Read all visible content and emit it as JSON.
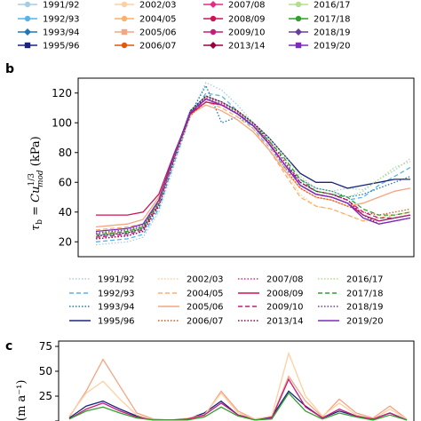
{
  "figure": {
    "panel_b_letter": "b",
    "panel_c_letter": "c",
    "panel_b_ylabel": "τb = Cu1/3mod (kPa)",
    "panel_c_ylabel": "(m a⁻¹)"
  },
  "chart_data": [
    {
      "type": "line",
      "panel": "b",
      "ylabel": "τb = Cu_mod^(1/3) (kPa)",
      "xlabel": "",
      "ylim": [
        10,
        130
      ],
      "yticks": [
        20,
        40,
        60,
        80,
        100,
        120
      ],
      "xlim": [
        0,
        100
      ],
      "grid": false,
      "legend_position": "top",
      "x": [
        0,
        5,
        10,
        15,
        20,
        25,
        30,
        35,
        40,
        45,
        50,
        55,
        60,
        65,
        70,
        75,
        80,
        85,
        90,
        95,
        100
      ],
      "series": [
        {
          "name": "1991/92",
          "color": "#a6cee3",
          "style": "dotted",
          "values": [
            18,
            19,
            20,
            23,
            40,
            72,
            105,
            127,
            122,
            112,
            100,
            88,
            75,
            62,
            56,
            54,
            56,
            55,
            62,
            68,
            76
          ]
        },
        {
          "name": "1992/93",
          "color": "#56b4e9",
          "style": "dashed",
          "values": [
            20,
            21,
            22,
            25,
            42,
            74,
            104,
            120,
            118,
            108,
            96,
            84,
            70,
            60,
            54,
            52,
            48,
            50,
            58,
            64,
            70
          ]
        },
        {
          "name": "1993/94",
          "color": "#1f78b4",
          "style": "dotted",
          "values": [
            22,
            23,
            24,
            27,
            44,
            76,
            106,
            125,
            100,
            104,
            98,
            86,
            72,
            62,
            56,
            54,
            50,
            52,
            56,
            60,
            64
          ]
        },
        {
          "name": "1995/96",
          "color": "#1a237e",
          "style": "solid",
          "values": [
            24,
            25,
            26,
            29,
            46,
            78,
            108,
            118,
            114,
            108,
            100,
            90,
            78,
            66,
            60,
            60,
            56,
            58,
            60,
            62,
            62
          ]
        },
        {
          "name": "2002/03",
          "color": "#fdd0a2",
          "style": "dotted",
          "values": [
            26,
            27,
            28,
            31,
            46,
            76,
            104,
            116,
            112,
            106,
            98,
            84,
            68,
            52,
            44,
            42,
            38,
            34,
            34,
            36,
            38
          ]
        },
        {
          "name": "2004/05",
          "color": "#fdae6b",
          "style": "dashed",
          "values": [
            28,
            29,
            30,
            32,
            48,
            78,
            106,
            114,
            110,
            104,
            96,
            82,
            66,
            50,
            44,
            42,
            38,
            34,
            36,
            38,
            40
          ]
        },
        {
          "name": "2005/06",
          "color": "#f4a582",
          "style": "solid",
          "values": [
            30,
            31,
            32,
            35,
            50,
            80,
            106,
            112,
            108,
            102,
            94,
            82,
            68,
            56,
            50,
            48,
            44,
            46,
            50,
            54,
            56
          ]
        },
        {
          "name": "2006/07",
          "color": "#e6550d",
          "style": "dotted",
          "values": [
            25,
            26,
            27,
            30,
            47,
            78,
            105,
            114,
            112,
            106,
            98,
            86,
            70,
            56,
            50,
            48,
            44,
            40,
            38,
            40,
            42
          ]
        },
        {
          "name": "2007/08",
          "color": "#e7298a",
          "style": "dotted",
          "values": [
            24,
            25,
            26,
            29,
            46,
            77,
            107,
            117,
            113,
            107,
            99,
            87,
            72,
            58,
            52,
            50,
            46,
            38,
            34,
            36,
            38
          ]
        },
        {
          "name": "2008/09",
          "color": "#ce1256",
          "style": "solid",
          "values": [
            38,
            38,
            38,
            40,
            52,
            80,
            106,
            114,
            112,
            106,
            98,
            86,
            72,
            58,
            52,
            50,
            46,
            38,
            34,
            36,
            38
          ]
        },
        {
          "name": "2009/10",
          "color": "#c51b7d",
          "style": "dashed",
          "values": [
            23,
            24,
            25,
            28,
            45,
            77,
            106,
            116,
            112,
            106,
            98,
            86,
            72,
            60,
            54,
            52,
            48,
            40,
            36,
            36,
            38
          ]
        },
        {
          "name": "2013/14",
          "color": "#980043",
          "style": "dotted",
          "values": [
            22,
            23,
            24,
            27,
            44,
            76,
            106,
            118,
            114,
            108,
            100,
            88,
            74,
            60,
            54,
            52,
            48,
            38,
            32,
            34,
            36
          ]
        },
        {
          "name": "2016/17",
          "color": "#b2df8a",
          "style": "dotted",
          "values": [
            24,
            25,
            26,
            29,
            46,
            78,
            108,
            118,
            114,
            108,
            100,
            90,
            78,
            64,
            56,
            54,
            50,
            54,
            62,
            70,
            74
          ]
        },
        {
          "name": "2017/18",
          "color": "#33a02c",
          "style": "dashed",
          "values": [
            25,
            26,
            27,
            30,
            47,
            78,
            107,
            116,
            112,
            106,
            98,
            88,
            76,
            62,
            54,
            52,
            50,
            42,
            38,
            38,
            40
          ]
        },
        {
          "name": "2018/19",
          "color": "#6a3d9a",
          "style": "dotted",
          "values": [
            26,
            27,
            28,
            31,
            48,
            79,
            107,
            116,
            112,
            106,
            98,
            86,
            72,
            58,
            52,
            50,
            46,
            38,
            34,
            36,
            38
          ]
        },
        {
          "name": "2019/20",
          "color": "#7b2cbf",
          "style": "solid",
          "values": [
            27,
            28,
            29,
            32,
            48,
            79,
            107,
            116,
            112,
            106,
            98,
            86,
            72,
            58,
            52,
            50,
            46,
            36,
            32,
            34,
            36
          ]
        }
      ]
    },
    {
      "type": "line",
      "panel": "c",
      "ylabel": "(m a⁻¹)",
      "xlabel": "",
      "ylim": [
        0,
        75
      ],
      "yticks": [
        0,
        25,
        50,
        75
      ],
      "ytick_labels": [
        "",
        "25",
        "50",
        "75"
      ],
      "xlim": [
        0,
        100
      ],
      "grid": false,
      "x": [
        0,
        5,
        10,
        15,
        20,
        25,
        30,
        35,
        40,
        45,
        50,
        55,
        60,
        65,
        70,
        75,
        80,
        85,
        90,
        95,
        100
      ],
      "series": [
        {
          "name": "2005/06",
          "color": "#f4a582",
          "values": [
            4,
            30,
            62,
            35,
            8,
            2,
            1,
            2,
            5,
            30,
            10,
            2,
            3,
            45,
            20,
            4,
            22,
            8,
            3,
            15,
            2
          ]
        },
        {
          "name": "1995/96",
          "color": "#1a237e",
          "values": [
            3,
            15,
            20,
            12,
            5,
            1,
            1,
            2,
            8,
            20,
            6,
            2,
            4,
            30,
            15,
            3,
            10,
            5,
            2,
            8,
            1
          ]
        },
        {
          "name": "2002/03",
          "color": "#fdd0a2",
          "values": [
            5,
            28,
            40,
            22,
            6,
            1,
            1,
            3,
            6,
            28,
            8,
            2,
            5,
            68,
            25,
            5,
            18,
            6,
            2,
            12,
            2
          ]
        },
        {
          "name": "2009/10",
          "color": "#c51b7d",
          "values": [
            2,
            12,
            18,
            10,
            4,
            1,
            1,
            2,
            6,
            18,
            6,
            1,
            3,
            42,
            14,
            3,
            12,
            5,
            2,
            8,
            1
          ]
        },
        {
          "name": "2017/18",
          "color": "#33a02c",
          "values": [
            2,
            10,
            14,
            8,
            3,
            1,
            1,
            1,
            4,
            14,
            5,
            1,
            2,
            28,
            10,
            2,
            8,
            4,
            1,
            6,
            1
          ]
        }
      ]
    }
  ],
  "legend_top": {
    "entries": [
      {
        "label": "1991/92",
        "color": "#a6cee3",
        "marker": "circle"
      },
      {
        "label": "1992/93",
        "color": "#56b4e9",
        "marker": "circle"
      },
      {
        "label": "1993/94",
        "color": "#1f78b4",
        "marker": "diamond"
      },
      {
        "label": "1995/96",
        "color": "#1a237e",
        "marker": "square"
      },
      {
        "label": "2002/03",
        "color": "#fdd0a2",
        "marker": "circle"
      },
      {
        "label": "2004/05",
        "color": "#fdae6b",
        "marker": "circle"
      },
      {
        "label": "2005/06",
        "color": "#f4a582",
        "marker": "square"
      },
      {
        "label": "2006/07",
        "color": "#e6550d",
        "marker": "circle"
      },
      {
        "label": "2007/08",
        "color": "#e7298a",
        "marker": "diamond"
      },
      {
        "label": "2008/09",
        "color": "#ce1256",
        "marker": "circle"
      },
      {
        "label": "2009/10",
        "color": "#c51b7d",
        "marker": "circle"
      },
      {
        "label": "2013/14",
        "color": "#980043",
        "marker": "diamond"
      },
      {
        "label": "2016/17",
        "color": "#b2df8a",
        "marker": "circle"
      },
      {
        "label": "2017/18",
        "color": "#33a02c",
        "marker": "circle"
      },
      {
        "label": "2018/19",
        "color": "#6a3d9a",
        "marker": "diamond"
      },
      {
        "label": "2019/20",
        "color": "#7b2cbf",
        "marker": "square"
      }
    ]
  },
  "legend_middle": {
    "entries": [
      {
        "label": "1991/92",
        "color": "#a6cee3",
        "style": "dotted"
      },
      {
        "label": "1992/93",
        "color": "#56b4e9",
        "style": "dashed"
      },
      {
        "label": "1993/94",
        "color": "#1f78b4",
        "style": "dotted"
      },
      {
        "label": "1995/96",
        "color": "#1a237e",
        "style": "solid"
      },
      {
        "label": "2002/03",
        "color": "#fdd0a2",
        "style": "dotted"
      },
      {
        "label": "2004/05",
        "color": "#fdae6b",
        "style": "dashed"
      },
      {
        "label": "2005/06",
        "color": "#f4a582",
        "style": "solid"
      },
      {
        "label": "2006/07",
        "color": "#e6550d",
        "style": "dotted"
      },
      {
        "label": "2007/08",
        "color": "#e7298a",
        "style": "dotted"
      },
      {
        "label": "2008/09",
        "color": "#ce1256",
        "style": "solid"
      },
      {
        "label": "2009/10",
        "color": "#c51b7d",
        "style": "dashed"
      },
      {
        "label": "2013/14",
        "color": "#980043",
        "style": "dotted"
      },
      {
        "label": "2016/17",
        "color": "#b2df8a",
        "style": "dotted"
      },
      {
        "label": "2017/18",
        "color": "#33a02c",
        "style": "dashed"
      },
      {
        "label": "2018/19",
        "color": "#6a3d9a",
        "style": "dotted"
      },
      {
        "label": "2019/20",
        "color": "#7b2cbf",
        "style": "solid"
      }
    ]
  }
}
